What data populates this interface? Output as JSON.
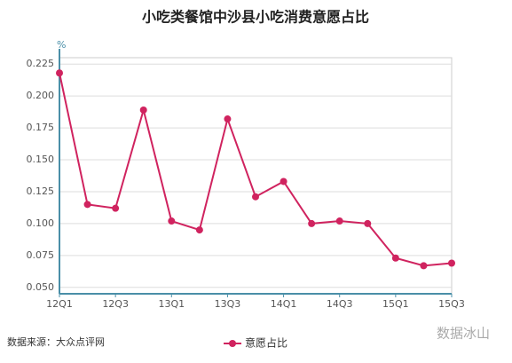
{
  "chart_data": {
    "type": "line",
    "title": "小吃类餐馆中沙县小吃消费意愿占比",
    "y_label": "%",
    "categories": [
      "12Q1",
      null,
      "12Q3",
      null,
      "13Q1",
      null,
      "13Q3",
      null,
      "14Q1",
      null,
      "14Q3",
      null,
      "15Q1",
      null,
      "15Q3"
    ],
    "series": [
      {
        "name": "意愿占比",
        "color": "#d0235f",
        "values": [
          0.218,
          0.115,
          0.112,
          0.189,
          0.102,
          0.095,
          0.182,
          0.121,
          0.133,
          0.1,
          0.102,
          0.1,
          0.073,
          0.067,
          0.069
        ]
      }
    ],
    "ylim": [
      0.045,
      0.23
    ],
    "yticks": [
      {
        "value": 0.05,
        "label": "0.050"
      },
      {
        "value": 0.075,
        "label": "0.075"
      },
      {
        "value": 0.1,
        "label": "0.100"
      },
      {
        "value": 0.125,
        "label": "0.125"
      },
      {
        "value": 0.15,
        "label": "0.150"
      },
      {
        "value": 0.175,
        "label": "0.175"
      },
      {
        "value": 0.2,
        "label": "0.200"
      },
      {
        "value": 0.225,
        "label": "0.225"
      }
    ],
    "grid": true,
    "source": "数据来源：大众点评网",
    "watermark": "数据冰山"
  }
}
